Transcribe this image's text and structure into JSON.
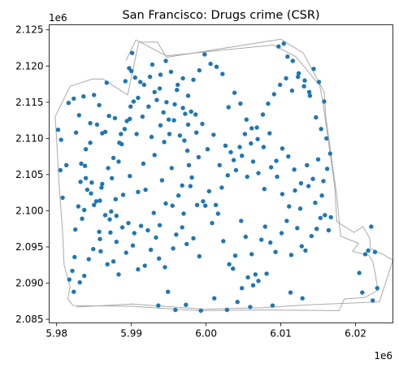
{
  "chart_data": {
    "type": "scatter",
    "title": "San Francisco: Drugs crime (CSR)",
    "xlabel": "",
    "ylabel": "",
    "xlim": [
      5979000,
      6025000
    ],
    "ylim": [
      2084500,
      2125700
    ],
    "x_scale_label": "1e6",
    "y_scale_label": "1e6",
    "x_ticks": [
      5980000,
      5990000,
      6000000,
      6010000,
      6020000
    ],
    "x_tick_labels": [
      "5.98",
      "5.99",
      "6.00",
      "6.01",
      "6.02"
    ],
    "y_ticks": [
      2085000,
      2090000,
      2095000,
      2100000,
      2105000,
      2110000,
      2115000,
      2120000,
      2125000
    ],
    "y_tick_labels": [
      "2.085",
      "2.090",
      "2.095",
      "2.100",
      "2.105",
      "2.110",
      "2.115",
      "2.120",
      "2.125"
    ],
    "grid": false,
    "legend": "none",
    "point_color": "#1f77b4",
    "boundary_color": "#aaaaaa",
    "boundary": [
      [
        5979800,
        2113000
      ],
      [
        5981800,
        2117200
      ],
      [
        5984800,
        2118200
      ],
      [
        5986200,
        2118200
      ],
      [
        5989500,
        2116000
      ],
      [
        5991000,
        2123300
      ],
      [
        5993500,
        2123300
      ],
      [
        5994700,
        2121200
      ],
      [
        6010000,
        2123700
      ],
      [
        6013000,
        2121800
      ],
      [
        6015800,
        2116400
      ],
      [
        6016000,
        2113200
      ],
      [
        6017500,
        2102000
      ],
      [
        6018000,
        2096500
      ],
      [
        6020400,
        2095500
      ],
      [
        6019600,
        2094400
      ],
      [
        6021800,
        2093800
      ],
      [
        6022300,
        2093000
      ],
      [
        6022600,
        2091500
      ],
      [
        6023000,
        2089000
      ],
      [
        6021200,
        2088000
      ],
      [
        6018500,
        2087800
      ],
      [
        6017800,
        2086200
      ],
      [
        6007500,
        2086300
      ],
      [
        5999000,
        2086200
      ],
      [
        5990000,
        2086800
      ],
      [
        5982200,
        2086900
      ],
      [
        5981500,
        2087800
      ],
      [
        5981800,
        2089500
      ],
      [
        5981000,
        2092500
      ],
      [
        5980800,
        2097000
      ],
      [
        5980300,
        2104000
      ],
      [
        5980000,
        2109800
      ],
      [
        5979800,
        2113000
      ]
    ],
    "boundary_shore": [
      [
        5989300,
        2120800
      ],
      [
        5990600,
        2123600
      ],
      [
        5994700,
        2121400
      ],
      [
        6009000,
        2122900
      ],
      [
        6012000,
        2121300
      ],
      [
        6015200,
        2117300
      ],
      [
        6015600,
        2115200
      ],
      [
        6017200,
        2103400
      ],
      [
        6017500,
        2098500
      ],
      [
        6019800,
        2097000
      ],
      [
        6021000,
        2097800
      ],
      [
        6021900,
        2096200
      ],
      [
        6022000,
        2094800
      ],
      [
        6023600,
        2094000
      ],
      [
        6025000,
        2093200
      ],
      [
        6023200,
        2087400
      ],
      [
        6013600,
        2087000
      ],
      [
        6007500,
        2086600
      ],
      [
        5999800,
        2086400
      ],
      [
        5990100,
        2087100
      ],
      [
        5982600,
        2086700
      ]
    ],
    "x": [
      5980200,
      5980600,
      5980500,
      5981600,
      5982300,
      5983600,
      5981300,
      5980800,
      5983900,
      5982600,
      5983000,
      5984500,
      5985000,
      5986700,
      5985700,
      5986500,
      5987400,
      5986000,
      5987300,
      5988000,
      5989700,
      5989200,
      5990500,
      5991200,
      5990100,
      5990300,
      5989800,
      5988700,
      5988300,
      5987900,
      5992800,
      5993800,
      5994700,
      5993900,
      5994400,
      5995800,
      5995000,
      5996200,
      5996900,
      5997600,
      5998600,
      5997100,
      5997500,
      5997700,
      5999000,
      5998100,
      5996800,
      5995400,
      5994100,
      5993100,
      5992700,
      5991600,
      5991900,
      5990900,
      5989800,
      5988900,
      5987100,
      5985800,
      5984700,
      5983700,
      5982500,
      5982400,
      5982100,
      5981700,
      5982300,
      5983100,
      5983700,
      5984300,
      5984900,
      5985800,
      5985900,
      5986800,
      5987600,
      5988300,
      5989300,
      5990200,
      5990900,
      5991800,
      5992600,
      5993300,
      5993700,
      5994500,
      5995600,
      5996000,
      5996800,
      5997400,
      5998300,
      5999100,
      5999900,
      6000800,
      6001600,
      6002300,
      6003100,
      6003900,
      6004700,
      6005300,
      6006100,
      6006600,
      6007400,
      6007900,
      6008600,
      6009300,
      6010100,
      6010800,
      6011400,
      6012200,
      6012800,
      6013300,
      6014100,
      6014800,
      6015300,
      6015900,
      6016400,
      6016700,
      6015500,
      6014600,
      6013700,
      6012600,
      6011900,
      6011100,
      6010200,
      6009500,
      6008700,
      6007800,
      6007000,
      6006300,
      6005500,
      6004800,
      6004000,
      6003300,
      6002600,
      6001800,
      6001000,
      6000200,
      5999500,
      5998700,
      5998000,
      5997200,
      5996500,
      5995700,
      5995100,
      5994300,
      5993400,
      5992500,
      5991700,
      5990900,
      5990000,
      5989400,
      5988600,
      5987800,
      5987000,
      5986100,
      5985400,
      5984500,
      5983800,
      5983200,
      5982900,
      5983400,
      5984100,
      5985000,
      5985700,
      5986500,
      5987200,
      5988000,
      5988800,
      5989600,
      5990400,
      5991300,
      5992200,
      5993000,
      5993800,
      5994600,
      5995500,
      5996300,
      5997000,
      5997900,
      5998800,
      5999600,
      6000400,
      6001300,
      6002100,
      6002900,
      6003700,
      6004500,
      6005200,
      6006000,
      6006800,
      6007600,
      6008300,
      6009100,
      6009900,
      6010700,
      6011500,
      6012300,
      6013100,
      6013900,
      6014700,
      6015400,
      6016100,
      6016600,
      6016200,
      6015700,
      6015000,
      6014300,
      6013500,
      6012700,
      6011800,
      6011000,
      6010200,
      6009400,
      6008500,
      6007700,
      6006900,
      6006100,
      6005400,
      6004600,
      6003800,
      6003000,
      6002200,
      6001400,
      6000600,
      5999800,
      5999100,
      5998300,
      5997600,
      5996900,
      5996100,
      5995300,
      5994600,
      5993900,
      5993100,
      5992300,
      5991500,
      5990700,
      5989900,
      5989100,
      5988400,
      5987600,
      5986900,
      5986100,
      5985300,
      5984600,
      5983900,
      5983300,
      6009700,
      6010400,
      6010900,
      6011600,
      6012400,
      6013200,
      6013800,
      6014400,
      6015100,
      6015800,
      6012900,
      6011300,
      6008900,
      6005900,
      6004200,
      6002800,
      6001100,
      5999300,
      5997300,
      5995900,
      5994900,
      5993600,
      6021700,
      6022100,
      6022600,
      6022900,
      6020500,
      6021300,
      6022300,
      6020900,
      6004800,
      6007000,
      6005600,
      6006300,
      6003600,
      6008100
    ],
    "y": [
      2111200,
      2109800,
      2105600,
      2114900,
      2115500,
      2115800,
      2106300,
      2101800,
      2108500,
      2110800,
      2113200,
      2112100,
      2116000,
      2117700,
      2114600,
      2110900,
      2104500,
      2103200,
      2099900,
      2099300,
      2119700,
      2117900,
      2118400,
      2117800,
      2121800,
      2115100,
      2112700,
      2109200,
      2106800,
      2101600,
      2120200,
      2116900,
      2115000,
      2111800,
      2109500,
      2114700,
      2112600,
      2117400,
      2114200,
      2111900,
      2113300,
      2109700,
      2108300,
      2106300,
      2107400,
      2104600,
      2103500,
      2105900,
      2104200,
      2107700,
      2110200,
      2106500,
      2102900,
      2102600,
      2104800,
      2102200,
      2098800,
      2101400,
      2103900,
      2100100,
      2097400,
      2093600,
      2091700,
      2090500,
      2088800,
      2090100,
      2091000,
      2093300,
      2094700,
      2096100,
      2094400,
      2092600,
      2093000,
      2091200,
      2094200,
      2095200,
      2091900,
      2092400,
      2094600,
      2096300,
      2093400,
      2092200,
      2094800,
      2096700,
      2097700,
      2095400,
      2096200,
      2093700,
      2100700,
      2098300,
      2099600,
      2095800,
      2092600,
      2093800,
      2098600,
      2096400,
      2094000,
      2091200,
      2096000,
      2097800,
      2095600,
      2094300,
      2096900,
      2098600,
      2093900,
      2097600,
      2095100,
      2094500,
      2096500,
      2097500,
      2099000,
      2099400,
      2097300,
      2099100,
      2102100,
      2101100,
      2103400,
      2100300,
      2102800,
      2100600,
      2102300,
      2104700,
      2106000,
      2103000,
      2105200,
      2106800,
      2104700,
      2107600,
      2105600,
      2108100,
      2109000,
      2106300,
      2110500,
      2108500,
      2112000,
      2110800,
      2113700,
      2113400,
      2110400,
      2112500,
      2110600,
      2113600,
      2115300,
      2118500,
      2117400,
      2115600,
      2119300,
      2112400,
      2110600,
      2112800,
      2113100,
      2110700,
      2111900,
      2109400,
      2106200,
      2104000,
      2100600,
      2098900,
      2102900,
      2100800,
      2097100,
      2099400,
      2097000,
      2095700,
      2097700,
      2098300,
      2096900,
      2097900,
      2097300,
      2099700,
      2098000,
      2101000,
      2100700,
      2102100,
      2099600,
      2103400,
      2100800,
      2101300,
      2102700,
      2100800,
      2103200,
      2104900,
      2107000,
      2108800,
      2110600,
      2109300,
      2111500,
      2113300,
      2114800,
      2116100,
      2117400,
      2118300,
      2116600,
      2118500,
      2117200,
      2115900,
      2112900,
      2111300,
      2110000,
      2107900,
      2105800,
      2104100,
      2107100,
      2104400,
      2106300,
      2103800,
      2105700,
      2107500,
      2108600,
      2106900,
      2110700,
      2108800,
      2109900,
      2111400,
      2112600,
      2114800,
      2116300,
      2114300,
      2118900,
      2119900,
      2120300,
      2121600,
      2119400,
      2118100,
      2115900,
      2118300,
      2116700,
      2119200,
      2120700,
      2118800,
      2116400,
      2114400,
      2113000,
      2110600,
      2114400,
      2111300,
      2109400,
      2107300,
      2105900,
      2103700,
      2101300,
      2102400,
      2104500,
      2106500,
      2122700,
      2123100,
      2121300,
      2120700,
      2119000,
      2118000,
      2116400,
      2119600,
      2117800,
      2115100,
      2087900,
      2088700,
      2086900,
      2086700,
      2087400,
      2086300,
      2087900,
      2086200,
      2087000,
      2086300,
      2088800,
      2086900,
      2094500,
      2097800,
      2094300,
      2089300,
      2091400,
      2094000,
      2087600,
      2088700,
      2089300,
      2090300,
      2090800,
      2089700,
      2092000,
      2091300
    ]
  }
}
